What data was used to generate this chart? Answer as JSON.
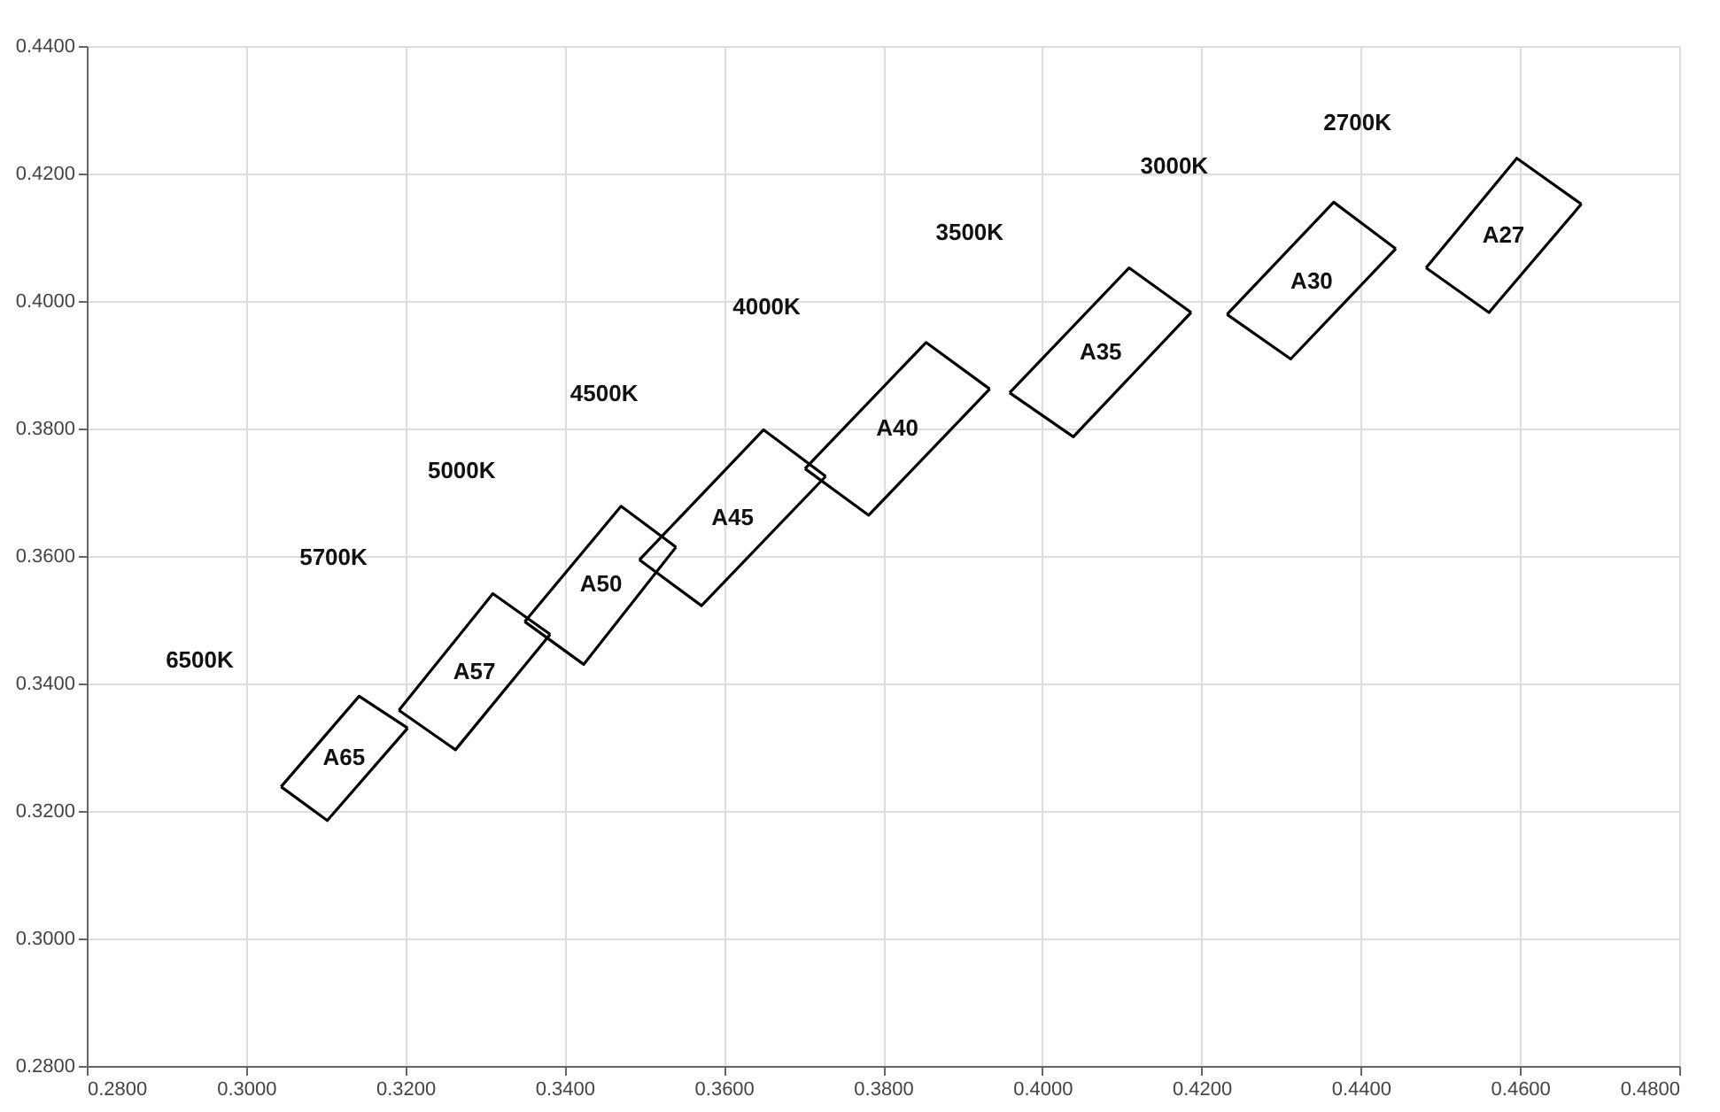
{
  "chart_data": {
    "type": "line",
    "xlim": [
      0.28,
      0.48
    ],
    "ylim": [
      0.28,
      0.44
    ],
    "xticks": [
      {
        "value": 0.28,
        "label": "0.2800"
      },
      {
        "value": 0.3,
        "label": "0.3000"
      },
      {
        "value": 0.32,
        "label": "0.3200"
      },
      {
        "value": 0.34,
        "label": "0.3400"
      },
      {
        "value": 0.36,
        "label": "0.3600"
      },
      {
        "value": 0.38,
        "label": "0.3800"
      },
      {
        "value": 0.4,
        "label": "0.4000"
      },
      {
        "value": 0.42,
        "label": "0.4200"
      },
      {
        "value": 0.44,
        "label": "0.4400"
      },
      {
        "value": 0.46,
        "label": "0.4600"
      },
      {
        "value": 0.48,
        "label": "0.4800"
      }
    ],
    "yticks": [
      {
        "value": 0.28,
        "label": "0.2800"
      },
      {
        "value": 0.3,
        "label": "0.3000"
      },
      {
        "value": 0.32,
        "label": "0.3200"
      },
      {
        "value": 0.34,
        "label": "0.3400"
      },
      {
        "value": 0.36,
        "label": "0.3600"
      },
      {
        "value": 0.38,
        "label": "0.3800"
      },
      {
        "value": 0.4,
        "label": "0.4000"
      },
      {
        "value": 0.42,
        "label": "0.4200"
      },
      {
        "value": 0.44,
        "label": "0.4400"
      }
    ],
    "grid": true,
    "marker": "none",
    "line_style": "solid",
    "series": [
      {
        "color": "#000000",
        "x": [
          0.3044,
          0.3142,
          0.3203
        ],
        "values": [
          0.3238,
          0.338,
          0.333
        ]
      },
      {
        "color": "#000000",
        "x": [
          0.3044,
          0.3102,
          0.3203
        ],
        "values": [
          0.3238,
          0.3185,
          0.333
        ]
      },
      {
        "color": "#000000",
        "x": [
          0.3192,
          0.331,
          0.3382
        ],
        "values": [
          0.3358,
          0.3541,
          0.3477
        ]
      },
      {
        "color": "#000000",
        "x": [
          0.3192,
          0.3263,
          0.3382
        ],
        "values": [
          0.3358,
          0.3296,
          0.3477
        ]
      },
      {
        "color": "#000000",
        "x": [
          0.335,
          0.3471,
          0.354
        ],
        "values": [
          0.3497,
          0.3678,
          0.3614
        ]
      },
      {
        "color": "#000000",
        "x": [
          0.335,
          0.3424,
          0.354
        ],
        "values": [
          0.3497,
          0.343,
          0.3614
        ]
      },
      {
        "color": "#000000",
        "x": [
          0.3494,
          0.365,
          0.3728
        ],
        "values": [
          0.3594,
          0.3798,
          0.3725
        ]
      },
      {
        "color": "#000000",
        "x": [
          0.3494,
          0.3572,
          0.3728
        ],
        "values": [
          0.3594,
          0.3522,
          0.3725
        ]
      },
      {
        "color": "#000000",
        "x": [
          0.3702,
          0.3854,
          0.3934
        ],
        "values": [
          0.3737,
          0.3935,
          0.3862
        ]
      },
      {
        "color": "#000000",
        "x": [
          0.3702,
          0.3782,
          0.3934
        ],
        "values": [
          0.3737,
          0.3664,
          0.3862
        ]
      },
      {
        "color": "#000000",
        "x": [
          0.3959,
          0.4109,
          0.4187
        ],
        "values": [
          0.3856,
          0.4052,
          0.3982
        ]
      },
      {
        "color": "#000000",
        "x": [
          0.3959,
          0.4039,
          0.4187
        ],
        "values": [
          0.3856,
          0.3787,
          0.3982
        ]
      },
      {
        "color": "#000000",
        "x": [
          0.4232,
          0.4366,
          0.4444
        ],
        "values": [
          0.3979,
          0.4155,
          0.4082
        ]
      },
      {
        "color": "#000000",
        "x": [
          0.4232,
          0.4312,
          0.4444
        ],
        "values": [
          0.3979,
          0.3909,
          0.4082
        ]
      },
      {
        "color": "#000000",
        "x": [
          0.4482,
          0.4596,
          0.4677
        ],
        "values": [
          0.4052,
          0.4224,
          0.4152
        ]
      },
      {
        "color": "#000000",
        "x": [
          0.4482,
          0.4561,
          0.4677
        ],
        "values": [
          0.4052,
          0.3982,
          0.4152
        ]
      }
    ],
    "annotations": [
      "A65",
      "A57",
      "A50",
      "A45",
      "A40",
      "A35",
      "A30",
      "A27",
      "6500K",
      "5700K",
      "5000K",
      "4500K",
      "4000K",
      "3500K",
      "3000K",
      "2700K"
    ]
  }
}
